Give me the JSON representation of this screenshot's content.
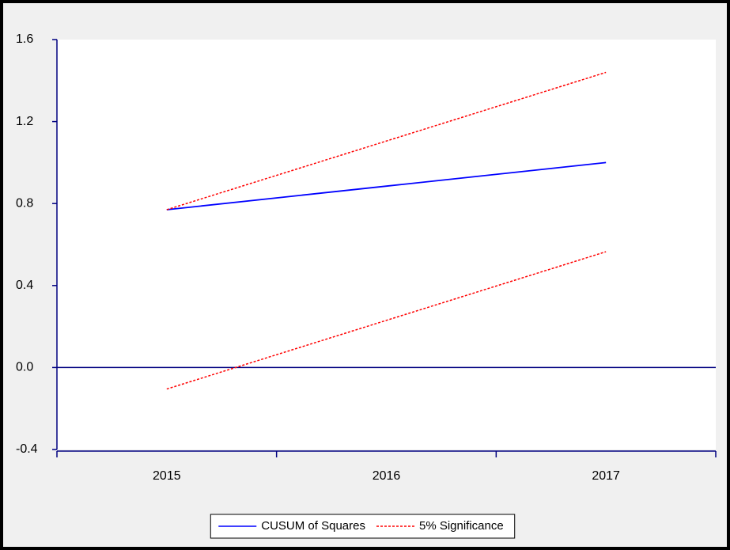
{
  "chart_data": {
    "type": "line",
    "categories": [
      "2015",
      "2016",
      "2017"
    ],
    "series": [
      {
        "name": "CUSUM of Squares",
        "color": "#0000ff",
        "dashed": false,
        "values": [
          0.77,
          0.885,
          1.0
        ]
      },
      {
        "name": "5% Significance",
        "color": "#ff0000",
        "dashed": true,
        "values": [
          0.77,
          1.105,
          1.44
        ]
      },
      {
        "color": "#ff0000",
        "dashed": true,
        "values": [
          -0.105,
          0.23,
          0.565
        ]
      }
    ],
    "ylim": [
      -0.4,
      1.6
    ],
    "yticks": [
      {
        "value": -0.4,
        "label": "-0.4"
      },
      {
        "value": 0,
        "label": "0.0"
      },
      {
        "value": 0.4,
        "label": "0.4"
      },
      {
        "value": 0.8,
        "label": "0.8"
      },
      {
        "value": 1.2,
        "label": "1.2"
      },
      {
        "value": 1.6,
        "label": "1.6"
      }
    ],
    "zero_line": true,
    "legend": "bottom",
    "axis_color": "#000080"
  }
}
